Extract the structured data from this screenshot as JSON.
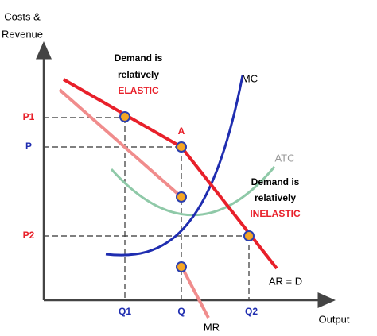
{
  "y_axis_label": [
    "Costs &",
    "Revenue"
  ],
  "x_axis_label": "Output",
  "price_labels": {
    "p1": "P1",
    "p": "P",
    "p2": "P2"
  },
  "quantity_labels": {
    "q1": "Q1",
    "q": "Q",
    "q2": "Q2"
  },
  "elastic_note": [
    "Demand is",
    "relatively",
    "ELASTIC"
  ],
  "inelastic_note": [
    "Demand is",
    "relatively",
    "INELASTIC"
  ],
  "curve_labels": {
    "mc": "MC",
    "atc": "ATC",
    "ar": "AR = D",
    "mr": "MR",
    "kink": "A"
  }
}
